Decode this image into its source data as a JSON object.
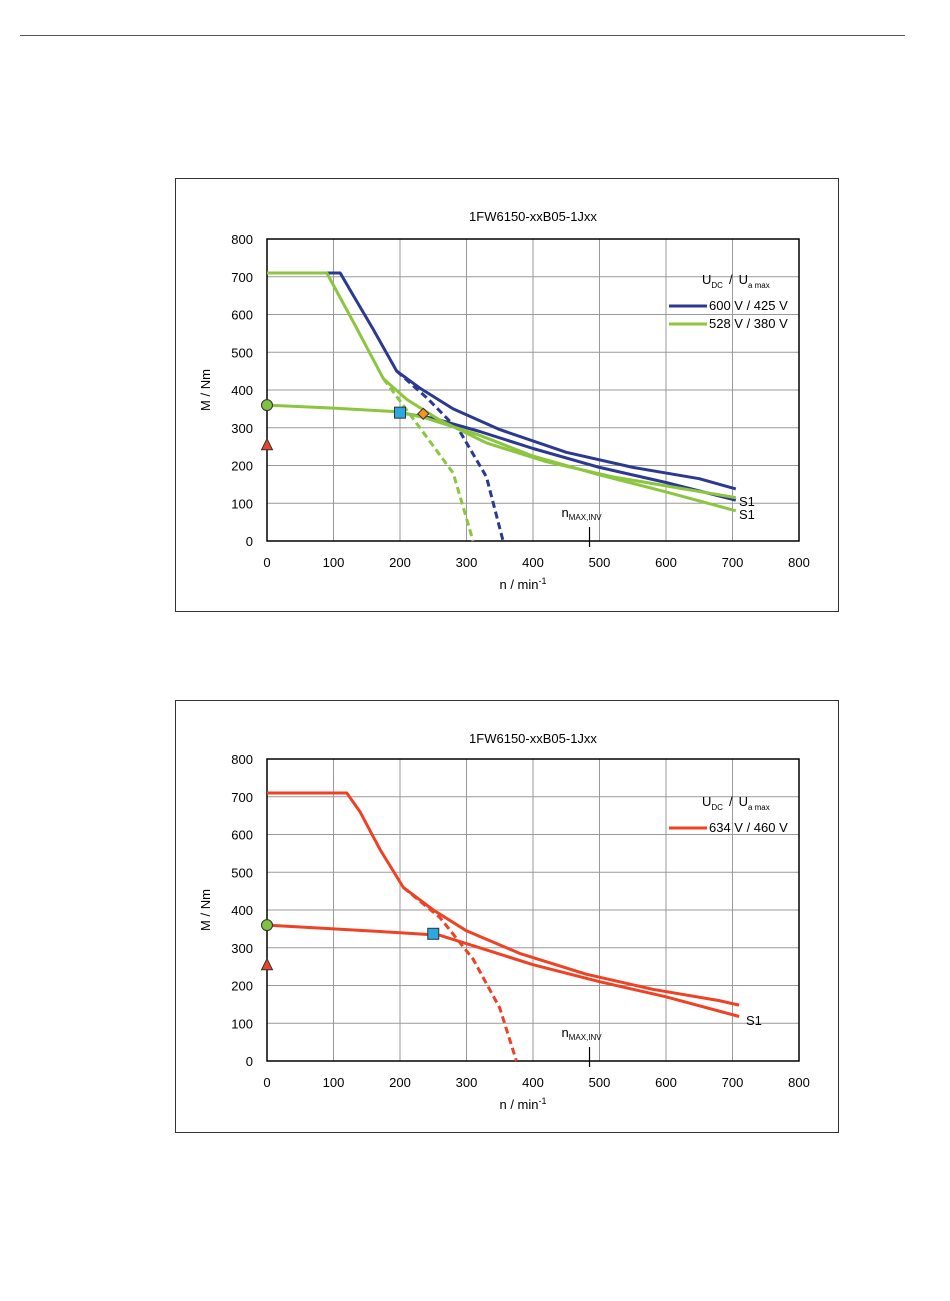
{
  "chart_data": [
    {
      "type": "line",
      "title": "1FW6150-xxB05-1Jxx",
      "xlabel": "n / min",
      "xlabel_sup": "-1",
      "ylabel": "M / Nm",
      "xlim": [
        0,
        800
      ],
      "ylim": [
        0,
        800
      ],
      "xticks": [
        "0",
        "100",
        "200",
        "300",
        "400",
        "500",
        "600",
        "700",
        "800"
      ],
      "yticks": [
        "0",
        "100",
        "200",
        "300",
        "400",
        "500",
        "600",
        "700",
        "800"
      ],
      "grid": true,
      "legend_position": "top-right",
      "legend_header": {
        "u_dc": "U",
        "u_dc_sub": "DC",
        "sep": "/",
        "u_a": "U",
        "u_a_sub": "a max"
      },
      "nmax_marker": {
        "x": 485,
        "label": "n",
        "label_sub": "MAX,INV"
      },
      "s1_labels": [
        "S1",
        "S1"
      ],
      "series": [
        {
          "name": "600 V / 425 V",
          "color": "#2b3990",
          "curves": [
            {
              "style": "solid",
              "points": [
                [
                  0,
                  710
                ],
                [
                  110,
                  710
                ],
                [
                  130,
                  650
                ],
                [
                  160,
                  560
                ],
                [
                  195,
                  450
                ],
                [
                  230,
                  405
                ],
                [
                  280,
                  350
                ],
                [
                  350,
                  295
                ],
                [
                  450,
                  235
                ],
                [
                  550,
                  195
                ],
                [
                  650,
                  165
                ],
                [
                  705,
                  138
                ]
              ]
            },
            {
              "style": "dashed",
              "points": [
                [
                  195,
                  450
                ],
                [
                  240,
                  380
                ],
                [
                  290,
                  290
                ],
                [
                  330,
                  170
                ],
                [
                  355,
                  0
                ]
              ]
            },
            {
              "style": "solid",
              "points": [
                [
                  200,
                  340
                ],
                [
                  250,
                  325
                ],
                [
                  320,
                  290
                ],
                [
                  400,
                  245
                ],
                [
                  500,
                  195
                ],
                [
                  600,
                  155
                ],
                [
                  705,
                  108
                ]
              ]
            }
          ]
        },
        {
          "name": "528 V / 380 V",
          "color": "#8cc63f",
          "curves": [
            {
              "style": "solid",
              "points": [
                [
                  0,
                  710
                ],
                [
                  90,
                  710
                ],
                [
                  130,
                  580
                ],
                [
                  175,
                  430
                ],
                [
                  210,
                  375
                ],
                [
                  260,
                  320
                ],
                [
                  330,
                  260
                ],
                [
                  420,
                  210
                ],
                [
                  520,
                  170
                ],
                [
                  620,
                  140
                ],
                [
                  705,
                  115
                ]
              ]
            },
            {
              "style": "dashed",
              "points": [
                [
                  175,
                  430
                ],
                [
                  230,
                  300
                ],
                [
                  280,
                  180
                ],
                [
                  310,
                  0
                ]
              ]
            },
            {
              "style": "solid",
              "points": [
                [
                  0,
                  360
                ],
                [
                  100,
                  352
                ],
                [
                  200,
                  342
                ],
                [
                  240,
                  325
                ],
                [
                  320,
                  280
                ],
                [
                  400,
                  225
                ],
                [
                  500,
                  175
                ],
                [
                  600,
                  130
                ],
                [
                  705,
                  80
                ]
              ]
            }
          ]
        }
      ],
      "markers": [
        {
          "shape": "circle",
          "x": 0,
          "y": 360,
          "color": "#7dc242"
        },
        {
          "shape": "triangle",
          "x": 0,
          "y": 255,
          "color": "#e8452c"
        },
        {
          "shape": "square",
          "x": 200,
          "y": 340,
          "color": "#29a9e1"
        },
        {
          "shape": "diamond",
          "x": 235,
          "y": 337,
          "color": "#f7941d"
        }
      ]
    },
    {
      "type": "line",
      "title": "1FW6150-xxB05-1Jxx",
      "xlabel": "n / min",
      "xlabel_sup": "-1",
      "ylabel": "M / Nm",
      "xlim": [
        0,
        800
      ],
      "ylim": [
        0,
        800
      ],
      "xticks": [
        "0",
        "100",
        "200",
        "300",
        "400",
        "500",
        "600",
        "700",
        "800"
      ],
      "yticks": [
        "0",
        "100",
        "200",
        "300",
        "400",
        "500",
        "600",
        "700",
        "800"
      ],
      "grid": true,
      "legend_position": "top-right",
      "legend_header": {
        "u_dc": "U",
        "u_dc_sub": "DC",
        "sep": "/",
        "u_a": "U",
        "u_a_sub": "a max"
      },
      "nmax_marker": {
        "x": 485,
        "label": "n",
        "label_sub": "MAX,INV"
      },
      "s1_labels": [
        "S1"
      ],
      "series": [
        {
          "name": "634 V / 460 V",
          "color": "#ef4123",
          "curves": [
            {
              "style": "solid",
              "points": [
                [
                  0,
                  710
                ],
                [
                  120,
                  710
                ],
                [
                  140,
                  660
                ],
                [
                  170,
                  560
                ],
                [
                  205,
                  460
                ],
                [
                  250,
                  400
                ],
                [
                  300,
                  345
                ],
                [
                  380,
                  285
                ],
                [
                  480,
                  230
                ],
                [
                  580,
                  190
                ],
                [
                  680,
                  160
                ],
                [
                  710,
                  148
                ]
              ]
            },
            {
              "style": "dashed",
              "points": [
                [
                  205,
                  460
                ],
                [
                  260,
                  380
                ],
                [
                  310,
                  270
                ],
                [
                  350,
                  140
                ],
                [
                  375,
                  0
                ]
              ]
            },
            {
              "style": "solid",
              "points": [
                [
                  0,
                  360
                ],
                [
                  100,
                  350
                ],
                [
                  200,
                  340
                ],
                [
                  260,
                  333
                ],
                [
                  320,
                  300
                ],
                [
                  400,
                  255
                ],
                [
                  500,
                  210
                ],
                [
                  600,
                  170
                ],
                [
                  710,
                  118
                ]
              ]
            }
          ]
        }
      ],
      "markers": [
        {
          "shape": "circle",
          "x": 0,
          "y": 360,
          "color": "#7dc242"
        },
        {
          "shape": "triangle",
          "x": 0,
          "y": 255,
          "color": "#e8452c"
        },
        {
          "shape": "square",
          "x": 250,
          "y": 337,
          "color": "#29a9e1"
        }
      ]
    }
  ]
}
